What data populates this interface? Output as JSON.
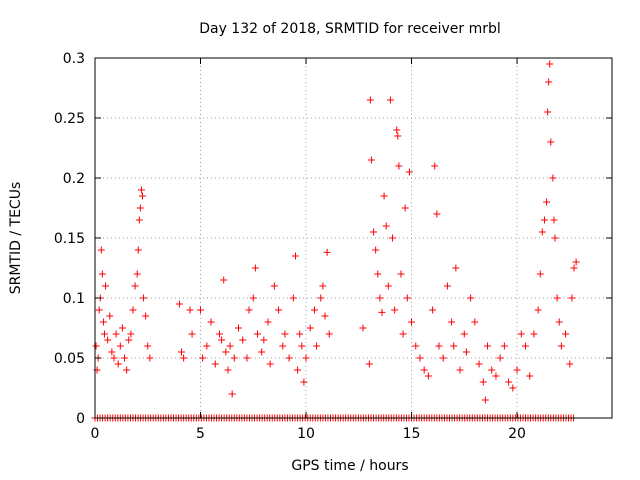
{
  "chart_data": {
    "type": "scatter",
    "title": "Day 132 of 2018, SRMTID for receiver mrbl",
    "xlabel": "GPS time / hours",
    "ylabel": "SRMTID / TECUs",
    "xlim": [
      0,
      24.5
    ],
    "ylim": [
      0,
      0.3
    ],
    "x_ticks": [
      0,
      5,
      10,
      15,
      20
    ],
    "x_tick_labels": [
      "0",
      "5",
      "10",
      "15",
      "20"
    ],
    "y_ticks": [
      0,
      0.05,
      0.1,
      0.15,
      0.2,
      0.25,
      0.3
    ],
    "y_tick_labels": [
      "0",
      "0.05",
      "0.1",
      "0.15",
      "0.2",
      "0.25",
      "0.3"
    ],
    "grid": true,
    "marker": "+",
    "color": "#ff0000",
    "zero_baseline_x_range": [
      0,
      22.8
    ],
    "series": [
      {
        "name": "SRMTID",
        "points": [
          [
            0.05,
            0.06
          ],
          [
            0.1,
            0.04
          ],
          [
            0.15,
            0.05
          ],
          [
            0.2,
            0.09
          ],
          [
            0.25,
            0.1
          ],
          [
            0.3,
            0.14
          ],
          [
            0.35,
            0.12
          ],
          [
            0.4,
            0.08
          ],
          [
            0.45,
            0.07
          ],
          [
            0.5,
            0.11
          ],
          [
            0.6,
            0.065
          ],
          [
            0.7,
            0.085
          ],
          [
            0.8,
            0.055
          ],
          [
            0.9,
            0.05
          ],
          [
            1.0,
            0.07
          ],
          [
            1.1,
            0.045
          ],
          [
            1.2,
            0.06
          ],
          [
            1.3,
            0.075
          ],
          [
            1.4,
            0.05
          ],
          [
            1.5,
            0.04
          ],
          [
            1.6,
            0.065
          ],
          [
            1.7,
            0.07
          ],
          [
            1.8,
            0.09
          ],
          [
            1.9,
            0.11
          ],
          [
            2.0,
            0.12
          ],
          [
            2.05,
            0.14
          ],
          [
            2.1,
            0.165
          ],
          [
            2.15,
            0.175
          ],
          [
            2.2,
            0.19
          ],
          [
            2.25,
            0.185
          ],
          [
            2.3,
            0.1
          ],
          [
            2.4,
            0.085
          ],
          [
            2.5,
            0.06
          ],
          [
            2.6,
            0.05
          ],
          [
            4.0,
            0.095
          ],
          [
            4.1,
            0.055
          ],
          [
            4.2,
            0.05
          ],
          [
            4.5,
            0.09
          ],
          [
            4.6,
            0.07
          ],
          [
            5.0,
            0.09
          ],
          [
            5.1,
            0.05
          ],
          [
            5.3,
            0.06
          ],
          [
            5.5,
            0.08
          ],
          [
            5.7,
            0.045
          ],
          [
            5.9,
            0.07
          ],
          [
            6.0,
            0.065
          ],
          [
            6.1,
            0.115
          ],
          [
            6.2,
            0.055
          ],
          [
            6.3,
            0.04
          ],
          [
            6.4,
            0.06
          ],
          [
            6.5,
            0.02
          ],
          [
            6.6,
            0.05
          ],
          [
            6.8,
            0.075
          ],
          [
            7.0,
            0.065
          ],
          [
            7.2,
            0.05
          ],
          [
            7.3,
            0.09
          ],
          [
            7.5,
            0.1
          ],
          [
            7.6,
            0.125
          ],
          [
            7.7,
            0.07
          ],
          [
            7.9,
            0.055
          ],
          [
            8.0,
            0.065
          ],
          [
            8.2,
            0.08
          ],
          [
            8.3,
            0.045
          ],
          [
            8.5,
            0.11
          ],
          [
            8.7,
            0.09
          ],
          [
            8.9,
            0.06
          ],
          [
            9.0,
            0.07
          ],
          [
            9.2,
            0.05
          ],
          [
            9.4,
            0.1
          ],
          [
            9.5,
            0.135
          ],
          [
            9.6,
            0.04
          ],
          [
            9.7,
            0.07
          ],
          [
            9.8,
            0.06
          ],
          [
            9.9,
            0.03
          ],
          [
            10.0,
            0.05
          ],
          [
            10.2,
            0.075
          ],
          [
            10.4,
            0.09
          ],
          [
            10.5,
            0.06
          ],
          [
            10.7,
            0.1
          ],
          [
            10.8,
            0.11
          ],
          [
            10.9,
            0.085
          ],
          [
            11.0,
            0.138
          ],
          [
            11.1,
            0.07
          ],
          [
            12.7,
            0.075
          ],
          [
            13.0,
            0.045
          ],
          [
            13.05,
            0.265
          ],
          [
            13.1,
            0.215
          ],
          [
            13.2,
            0.155
          ],
          [
            13.3,
            0.14
          ],
          [
            13.4,
            0.12
          ],
          [
            13.5,
            0.1
          ],
          [
            13.6,
            0.088
          ],
          [
            13.7,
            0.185
          ],
          [
            13.8,
            0.16
          ],
          [
            13.9,
            0.11
          ],
          [
            14.0,
            0.265
          ],
          [
            14.1,
            0.15
          ],
          [
            14.2,
            0.09
          ],
          [
            14.3,
            0.24
          ],
          [
            14.35,
            0.235
          ],
          [
            14.4,
            0.21
          ],
          [
            14.5,
            0.12
          ],
          [
            14.6,
            0.07
          ],
          [
            14.7,
            0.175
          ],
          [
            14.8,
            0.1
          ],
          [
            14.9,
            0.205
          ],
          [
            15.0,
            0.08
          ],
          [
            15.2,
            0.06
          ],
          [
            15.4,
            0.05
          ],
          [
            15.6,
            0.04
          ],
          [
            15.8,
            0.035
          ],
          [
            16.0,
            0.09
          ],
          [
            16.1,
            0.21
          ],
          [
            16.2,
            0.17
          ],
          [
            16.3,
            0.06
          ],
          [
            16.5,
            0.05
          ],
          [
            16.7,
            0.11
          ],
          [
            16.9,
            0.08
          ],
          [
            17.0,
            0.06
          ],
          [
            17.1,
            0.125
          ],
          [
            17.3,
            0.04
          ],
          [
            17.5,
            0.07
          ],
          [
            17.6,
            0.055
          ],
          [
            17.8,
            0.1
          ],
          [
            18.0,
            0.08
          ],
          [
            18.2,
            0.045
          ],
          [
            18.4,
            0.03
          ],
          [
            18.5,
            0.015
          ],
          [
            18.6,
            0.06
          ],
          [
            18.8,
            0.04
          ],
          [
            19.0,
            0.035
          ],
          [
            19.2,
            0.05
          ],
          [
            19.4,
            0.06
          ],
          [
            19.6,
            0.03
          ],
          [
            19.8,
            0.025
          ],
          [
            20.0,
            0.04
          ],
          [
            20.2,
            0.07
          ],
          [
            20.4,
            0.06
          ],
          [
            20.6,
            0.035
          ],
          [
            20.8,
            0.07
          ],
          [
            21.0,
            0.09
          ],
          [
            21.1,
            0.12
          ],
          [
            21.2,
            0.155
          ],
          [
            21.3,
            0.165
          ],
          [
            21.4,
            0.18
          ],
          [
            21.45,
            0.255
          ],
          [
            21.5,
            0.28
          ],
          [
            21.55,
            0.295
          ],
          [
            21.6,
            0.23
          ],
          [
            21.7,
            0.2
          ],
          [
            21.75,
            0.165
          ],
          [
            21.8,
            0.15
          ],
          [
            21.9,
            0.1
          ],
          [
            22.0,
            0.08
          ],
          [
            22.1,
            0.06
          ],
          [
            22.3,
            0.07
          ],
          [
            22.5,
            0.045
          ],
          [
            22.6,
            0.1
          ],
          [
            22.7,
            0.125
          ],
          [
            22.8,
            0.13
          ]
        ]
      }
    ]
  }
}
